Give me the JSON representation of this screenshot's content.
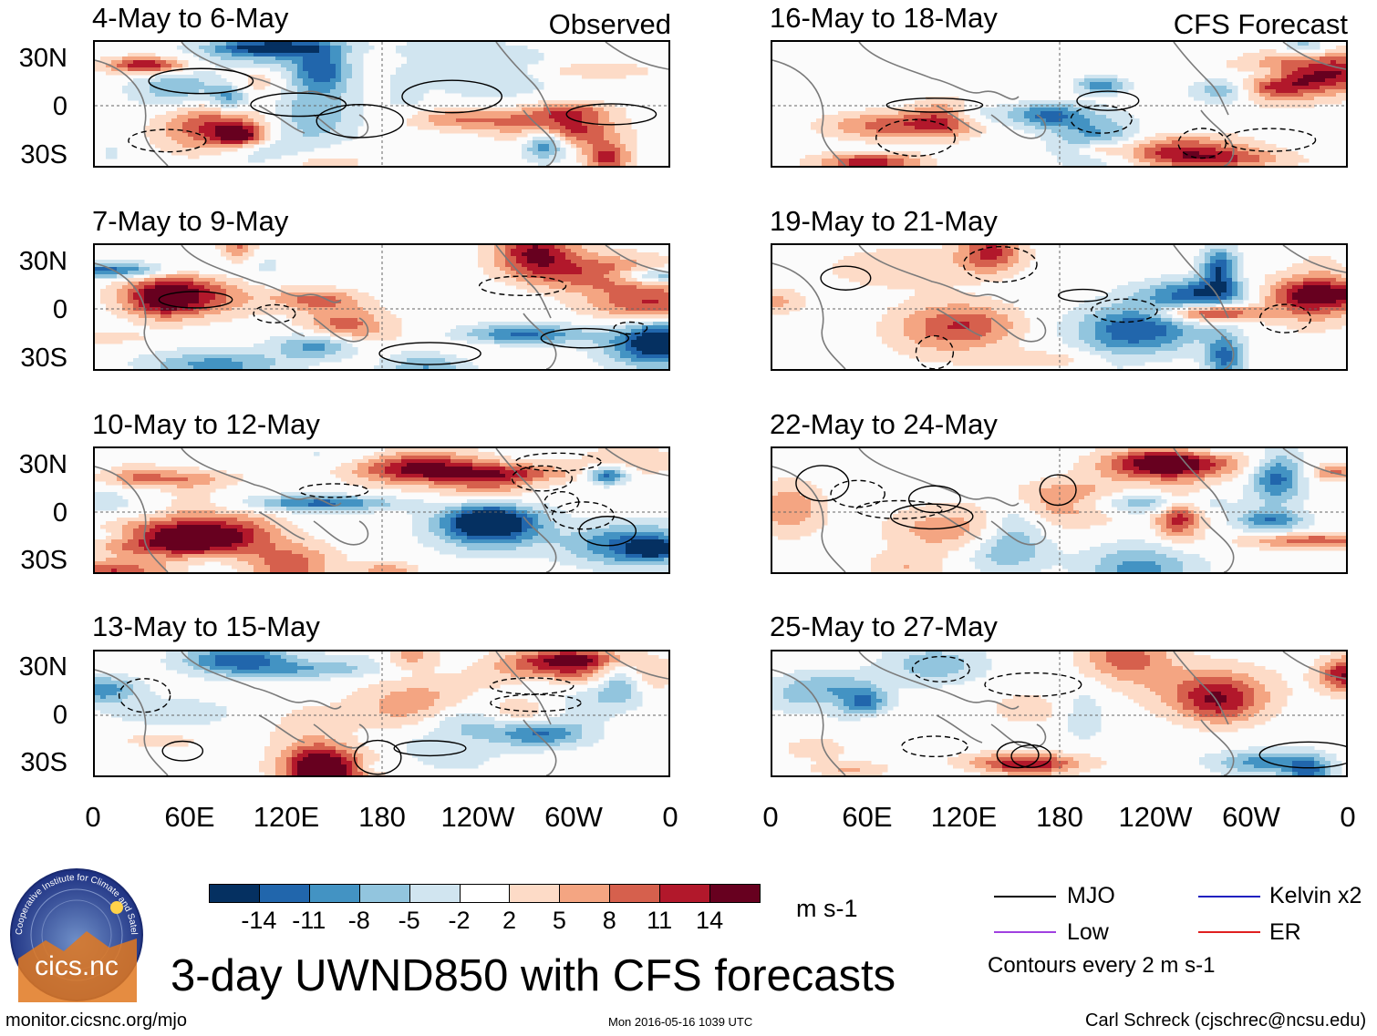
{
  "column_titles": {
    "observed": "Observed",
    "forecast": "CFS Forecast"
  },
  "panels": [
    {
      "title": "4-May to 6-May",
      "kind": "observed"
    },
    {
      "title": "7-May to 9-May",
      "kind": "observed"
    },
    {
      "title": "10-May to 12-May",
      "kind": "observed"
    },
    {
      "title": "13-May to 15-May",
      "kind": "observed"
    },
    {
      "title": "16-May to 18-May",
      "kind": "forecast"
    },
    {
      "title": "19-May to 21-May",
      "kind": "forecast"
    },
    {
      "title": "22-May to 24-May",
      "kind": "forecast"
    },
    {
      "title": "25-May to 27-May",
      "kind": "forecast"
    }
  ],
  "lat_labels": [
    "30N",
    "0",
    "30S"
  ],
  "lon_labels": [
    "0",
    "60E",
    "120E",
    "180",
    "120W",
    "60W",
    "0"
  ],
  "colorbar": {
    "colors": [
      "#053061",
      "#2166ac",
      "#4393c3",
      "#92c5de",
      "#d1e5f0",
      "#ffffff",
      "#fddbc7",
      "#f4a582",
      "#d6604d",
      "#b2182b",
      "#67001f"
    ],
    "tick_labels": [
      "-14",
      "-11",
      "-8",
      "-5",
      "-2",
      "2",
      "5",
      "8",
      "11",
      "14"
    ],
    "units": "m s-1"
  },
  "legend": {
    "items": [
      {
        "label": "MJO",
        "color": "#000000"
      },
      {
        "label": "Kelvin x2",
        "color": "#2020c0"
      },
      {
        "label": "Low",
        "color": "#a040e0"
      },
      {
        "label": "ER",
        "color": "#e02020"
      }
    ],
    "note": "Contours every 2 m s-1"
  },
  "main_title": "3-day UWND850 with CFS forecasts",
  "logo_text": "cics.nc",
  "logo_ring_text": "Cooperative Institute for Climate and Satellites",
  "footer": {
    "url": "monitor.cicsnc.org/mjo",
    "timestamp": "Mon 2016-05-16 1039 UTC",
    "author": "Carl Schreck (cjschrec@ncsu.edu)"
  }
}
